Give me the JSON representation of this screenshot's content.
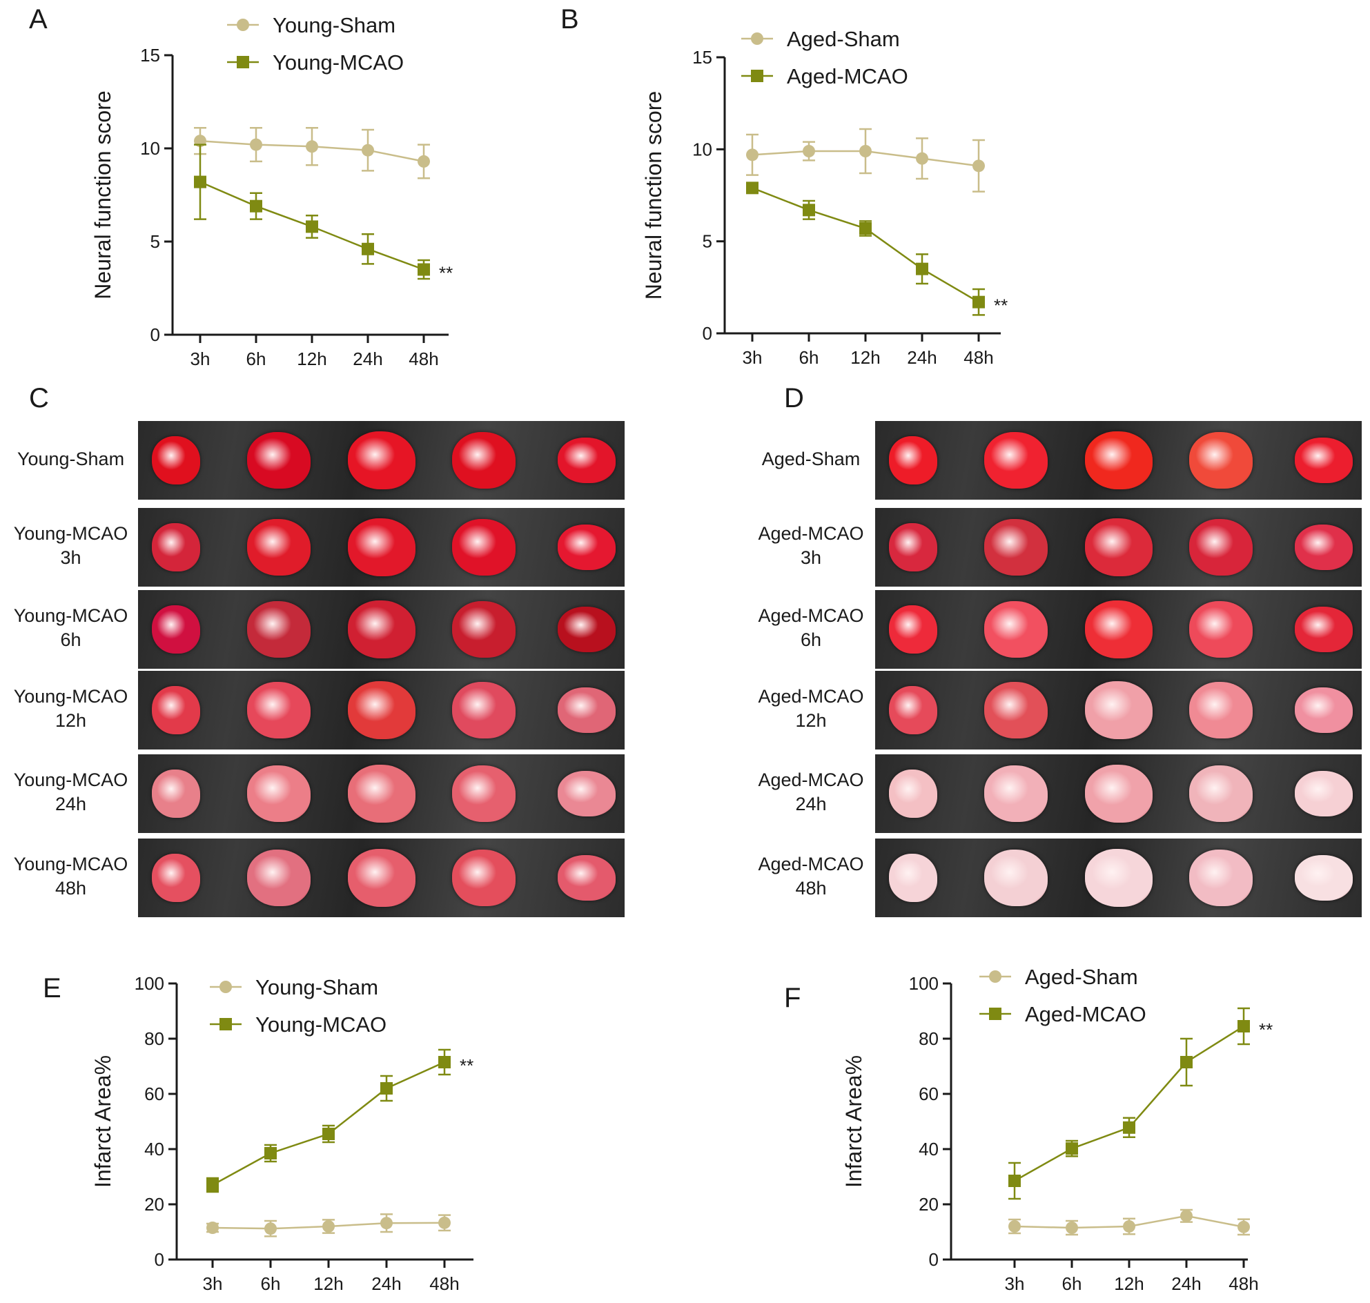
{
  "panels": {
    "A": "A",
    "B": "B",
    "C": "C",
    "D": "D",
    "E": "E",
    "F": "F"
  },
  "colors": {
    "sham": "#c9bd8a",
    "mcao": "#7f8a12",
    "axis": "#1a1a1a"
  },
  "chart_data": [
    {
      "id": "A",
      "type": "line",
      "title": "",
      "xlabel": "",
      "ylabel": "Neural function score",
      "categories": [
        "3h",
        "6h",
        "12h",
        "24h",
        "48h"
      ],
      "ylim": [
        0,
        15
      ],
      "yticks": [
        0,
        5,
        10,
        15
      ],
      "grid": false,
      "legend_position": "top",
      "series": [
        {
          "name": "Young-Sham",
          "marker": "circle",
          "values": [
            10.4,
            10.2,
            10.1,
            9.9,
            9.3
          ],
          "errors": [
            0.7,
            0.9,
            1.0,
            1.1,
            0.9
          ]
        },
        {
          "name": "Young-MCAO",
          "marker": "square",
          "values": [
            8.2,
            6.9,
            5.8,
            4.6,
            3.5
          ],
          "errors": [
            2.0,
            0.7,
            0.6,
            0.8,
            0.5
          ]
        }
      ],
      "annotation": "**"
    },
    {
      "id": "B",
      "type": "line",
      "title": "",
      "xlabel": "",
      "ylabel": "Neural function score",
      "categories": [
        "3h",
        "6h",
        "12h",
        "24h",
        "48h"
      ],
      "ylim": [
        0,
        15
      ],
      "yticks": [
        0,
        5,
        10,
        15
      ],
      "grid": false,
      "legend_position": "top",
      "series": [
        {
          "name": "Aged-Sham",
          "marker": "circle",
          "values": [
            9.7,
            9.9,
            9.9,
            9.5,
            9.1
          ],
          "errors": [
            1.1,
            0.5,
            1.2,
            1.1,
            1.4
          ]
        },
        {
          "name": "Aged-MCAO",
          "marker": "square",
          "values": [
            7.9,
            6.7,
            5.7,
            3.5,
            1.7
          ],
          "errors": [
            0.2,
            0.5,
            0.4,
            0.8,
            0.7
          ]
        }
      ],
      "annotation": "**"
    },
    {
      "id": "E",
      "type": "line",
      "title": "",
      "xlabel": "",
      "ylabel": "Infarct Area%",
      "categories": [
        "3h",
        "6h",
        "12h",
        "24h",
        "48h"
      ],
      "ylim": [
        0,
        100
      ],
      "yticks": [
        0,
        20,
        40,
        60,
        80,
        100
      ],
      "grid": false,
      "legend_position": "top",
      "series": [
        {
          "name": "Young-Sham",
          "marker": "circle",
          "values": [
            11.5,
            11.2,
            12.0,
            13.2,
            13.3
          ],
          "errors": [
            1.5,
            2.8,
            2.4,
            3.2,
            2.8
          ]
        },
        {
          "name": "Young-MCAO",
          "marker": "square",
          "values": [
            27,
            38.5,
            45.5,
            62,
            71.5
          ],
          "errors": [
            2.5,
            3.0,
            3.0,
            4.5,
            4.5
          ]
        }
      ],
      "annotation": "**"
    },
    {
      "id": "F",
      "type": "line",
      "title": "",
      "xlabel": "",
      "ylabel": "Infarct Area%",
      "categories": [
        "3h",
        "6h",
        "12h",
        "24h",
        "48h"
      ],
      "ylim": [
        0,
        100
      ],
      "yticks": [
        0,
        20,
        40,
        60,
        80,
        100
      ],
      "grid": false,
      "legend_position": "top",
      "series": [
        {
          "name": "Aged-Sham",
          "marker": "circle",
          "values": [
            12.0,
            11.5,
            12.0,
            15.8,
            11.8
          ],
          "errors": [
            2.5,
            2.5,
            2.8,
            2.2,
            2.8
          ]
        },
        {
          "name": "Aged-MCAO",
          "marker": "square",
          "values": [
            28.5,
            40.2,
            47.8,
            71.5,
            84.5
          ],
          "errors": [
            6.5,
            2.8,
            3.5,
            8.5,
            6.5
          ]
        }
      ],
      "annotation": "**"
    }
  ],
  "photo_panels": [
    {
      "id": "C",
      "rows": [
        {
          "lines": [
            "Young-Sham"
          ]
        },
        {
          "lines": [
            "Young-MCAO",
            "3h"
          ]
        },
        {
          "lines": [
            "Young-MCAO",
            "6h"
          ]
        },
        {
          "lines": [
            "Young-MCAO",
            "12h"
          ]
        },
        {
          "lines": [
            "Young-MCAO",
            "24h"
          ]
        },
        {
          "lines": [
            "Young-MCAO",
            "48h"
          ]
        }
      ]
    },
    {
      "id": "D",
      "rows": [
        {
          "lines": [
            "Aged-Sham"
          ]
        },
        {
          "lines": [
            "Aged-MCAO",
            "3h"
          ]
        },
        {
          "lines": [
            "Aged-MCAO",
            "6h"
          ]
        },
        {
          "lines": [
            "Aged-MCAO",
            "12h"
          ]
        },
        {
          "lines": [
            "Aged-MCAO",
            "24h"
          ]
        },
        {
          "lines": [
            "Aged-MCAO",
            "48h"
          ]
        }
      ]
    }
  ]
}
